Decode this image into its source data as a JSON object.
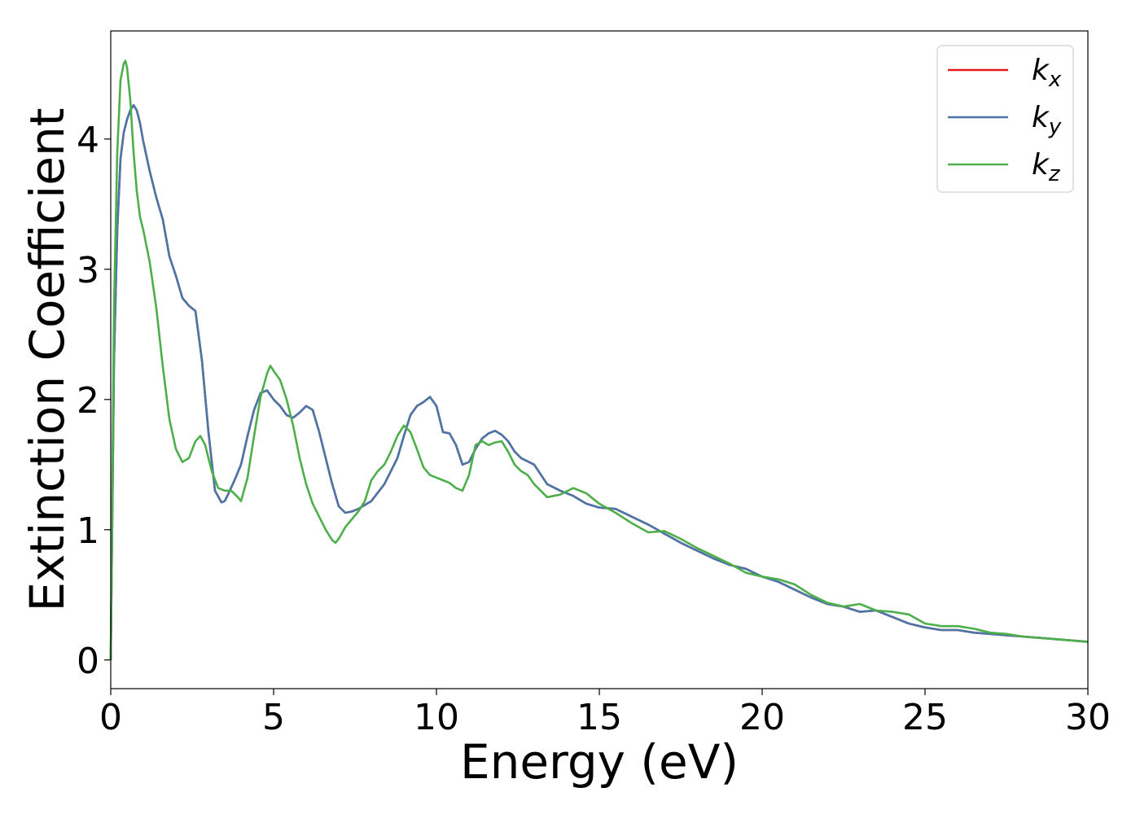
{
  "chart_data": {
    "type": "line",
    "title": "",
    "xlabel": "Energy (eV)",
    "ylabel": "Extinction Coefficient",
    "xlim": [
      0,
      30
    ],
    "ylim": [
      -0.22,
      4.83
    ],
    "xticks": [
      0,
      5,
      10,
      15,
      20,
      25,
      30
    ],
    "yticks": [
      0,
      1,
      2,
      3,
      4
    ],
    "grid": false,
    "legend_position": "top-right",
    "series": [
      {
        "name": "k",
        "subscript": "x",
        "color": "#e41a1c",
        "x": [
          0,
          0.1,
          0.2,
          0.3,
          0.4,
          0.5,
          0.6,
          0.7,
          0.8,
          0.9,
          1.0,
          1.2,
          1.4,
          1.6,
          1.8,
          2.0,
          2.2,
          2.4,
          2.6,
          2.8,
          3.0,
          3.2,
          3.4,
          3.5,
          3.6,
          3.8,
          4.0,
          4.2,
          4.4,
          4.6,
          4.8,
          5.0,
          5.2,
          5.4,
          5.6,
          5.8,
          6.0,
          6.2,
          6.4,
          6.6,
          6.8,
          7.0,
          7.2,
          7.4,
          7.6,
          7.8,
          8.0,
          8.4,
          8.8,
          9.0,
          9.2,
          9.4,
          9.6,
          9.8,
          10.0,
          10.2,
          10.4,
          10.6,
          10.8,
          11.0,
          11.2,
          11.4,
          11.6,
          11.8,
          12.0,
          12.2,
          12.4,
          12.6,
          13.0,
          13.4,
          13.8,
          14.2,
          14.6,
          15.0,
          15.5,
          16.0,
          16.5,
          17.0,
          17.5,
          18.0,
          18.5,
          19.0,
          19.5,
          20.0,
          20.5,
          21.0,
          21.5,
          22.0,
          22.5,
          23.0,
          23.5,
          24.0,
          24.5,
          25.0,
          25.5,
          26.0,
          26.5,
          27.0,
          27.5,
          28.0,
          28.5,
          29.0,
          29.5,
          30.0
        ],
        "y": [
          0.0,
          2.3,
          3.3,
          3.85,
          4.05,
          4.15,
          4.22,
          4.26,
          4.22,
          4.12,
          3.98,
          3.75,
          3.55,
          3.38,
          3.1,
          2.95,
          2.78,
          2.72,
          2.68,
          2.3,
          1.75,
          1.3,
          1.21,
          1.22,
          1.27,
          1.38,
          1.5,
          1.72,
          1.92,
          2.05,
          2.07,
          2.0,
          1.95,
          1.88,
          1.86,
          1.9,
          1.95,
          1.92,
          1.75,
          1.55,
          1.35,
          1.18,
          1.13,
          1.14,
          1.16,
          1.19,
          1.22,
          1.35,
          1.55,
          1.72,
          1.88,
          1.95,
          1.98,
          2.02,
          1.95,
          1.75,
          1.74,
          1.65,
          1.5,
          1.52,
          1.62,
          1.7,
          1.74,
          1.76,
          1.73,
          1.68,
          1.6,
          1.55,
          1.5,
          1.35,
          1.3,
          1.26,
          1.2,
          1.17,
          1.16,
          1.1,
          1.04,
          0.97,
          0.9,
          0.84,
          0.78,
          0.73,
          0.7,
          0.64,
          0.6,
          0.54,
          0.48,
          0.43,
          0.41,
          0.37,
          0.38,
          0.33,
          0.28,
          0.25,
          0.23,
          0.23,
          0.21,
          0.2,
          0.19,
          0.18,
          0.17,
          0.16,
          0.15,
          0.14
        ]
      },
      {
        "name": "k",
        "subscript": "y",
        "color": "#4a77a8",
        "x": [
          0,
          0.1,
          0.2,
          0.3,
          0.4,
          0.5,
          0.6,
          0.7,
          0.8,
          0.9,
          1.0,
          1.2,
          1.4,
          1.6,
          1.8,
          2.0,
          2.2,
          2.4,
          2.6,
          2.8,
          3.0,
          3.2,
          3.4,
          3.5,
          3.6,
          3.8,
          4.0,
          4.2,
          4.4,
          4.6,
          4.8,
          5.0,
          5.2,
          5.4,
          5.6,
          5.8,
          6.0,
          6.2,
          6.4,
          6.6,
          6.8,
          7.0,
          7.2,
          7.4,
          7.6,
          7.8,
          8.0,
          8.4,
          8.8,
          9.0,
          9.2,
          9.4,
          9.6,
          9.8,
          10.0,
          10.2,
          10.4,
          10.6,
          10.8,
          11.0,
          11.2,
          11.4,
          11.6,
          11.8,
          12.0,
          12.2,
          12.4,
          12.6,
          13.0,
          13.4,
          13.8,
          14.2,
          14.6,
          15.0,
          15.5,
          16.0,
          16.5,
          17.0,
          17.5,
          18.0,
          18.5,
          19.0,
          19.5,
          20.0,
          20.5,
          21.0,
          21.5,
          22.0,
          22.5,
          23.0,
          23.5,
          24.0,
          24.5,
          25.0,
          25.5,
          26.0,
          26.5,
          27.0,
          27.5,
          28.0,
          28.5,
          29.0,
          29.5,
          30.0
        ],
        "y": [
          0.0,
          2.3,
          3.3,
          3.85,
          4.05,
          4.15,
          4.22,
          4.26,
          4.22,
          4.12,
          3.98,
          3.75,
          3.55,
          3.38,
          3.1,
          2.95,
          2.78,
          2.72,
          2.68,
          2.3,
          1.75,
          1.3,
          1.21,
          1.22,
          1.27,
          1.38,
          1.5,
          1.72,
          1.92,
          2.05,
          2.07,
          2.0,
          1.95,
          1.88,
          1.86,
          1.9,
          1.95,
          1.92,
          1.75,
          1.55,
          1.35,
          1.18,
          1.13,
          1.14,
          1.16,
          1.19,
          1.22,
          1.35,
          1.55,
          1.72,
          1.88,
          1.95,
          1.98,
          2.02,
          1.95,
          1.75,
          1.74,
          1.65,
          1.5,
          1.52,
          1.62,
          1.7,
          1.74,
          1.76,
          1.73,
          1.68,
          1.6,
          1.55,
          1.5,
          1.35,
          1.3,
          1.26,
          1.2,
          1.17,
          1.16,
          1.1,
          1.04,
          0.97,
          0.9,
          0.84,
          0.78,
          0.73,
          0.7,
          0.64,
          0.6,
          0.54,
          0.48,
          0.43,
          0.41,
          0.37,
          0.38,
          0.33,
          0.28,
          0.25,
          0.23,
          0.23,
          0.21,
          0.2,
          0.19,
          0.18,
          0.17,
          0.16,
          0.15,
          0.14
        ]
      },
      {
        "name": "k",
        "subscript": "z",
        "color": "#4daf4a",
        "x": [
          0,
          0.1,
          0.2,
          0.3,
          0.4,
          0.45,
          0.5,
          0.6,
          0.7,
          0.8,
          0.9,
          1.0,
          1.2,
          1.4,
          1.6,
          1.8,
          2.0,
          2.2,
          2.4,
          2.6,
          2.75,
          2.9,
          3.1,
          3.3,
          3.5,
          3.7,
          3.9,
          4.0,
          4.2,
          4.4,
          4.6,
          4.8,
          4.9,
          5.0,
          5.2,
          5.4,
          5.6,
          5.8,
          6.0,
          6.2,
          6.4,
          6.6,
          6.8,
          6.9,
          7.0,
          7.2,
          7.4,
          7.6,
          7.8,
          8.0,
          8.2,
          8.4,
          8.6,
          8.8,
          9.0,
          9.2,
          9.4,
          9.6,
          9.8,
          10.0,
          10.2,
          10.4,
          10.6,
          10.8,
          11.0,
          11.2,
          11.4,
          11.6,
          11.8,
          12.0,
          12.2,
          12.4,
          12.6,
          12.8,
          13.0,
          13.4,
          13.8,
          14.2,
          14.6,
          15.0,
          15.5,
          16.0,
          16.5,
          17.0,
          17.5,
          18.0,
          18.5,
          19.0,
          19.5,
          20.0,
          20.5,
          21.0,
          21.5,
          22.0,
          22.5,
          23.0,
          23.5,
          24.0,
          24.5,
          25.0,
          25.5,
          26.0,
          26.5,
          27.0,
          27.5,
          28.0,
          28.5,
          29.0,
          29.5,
          30.0
        ],
        "y": [
          0.0,
          2.7,
          3.9,
          4.45,
          4.58,
          4.6,
          4.55,
          4.3,
          3.9,
          3.6,
          3.4,
          3.3,
          3.05,
          2.7,
          2.25,
          1.85,
          1.62,
          1.52,
          1.55,
          1.68,
          1.72,
          1.65,
          1.45,
          1.32,
          1.3,
          1.3,
          1.25,
          1.22,
          1.4,
          1.72,
          2.02,
          2.2,
          2.26,
          2.22,
          2.15,
          2.0,
          1.8,
          1.55,
          1.35,
          1.2,
          1.1,
          1.0,
          0.92,
          0.9,
          0.93,
          1.02,
          1.08,
          1.14,
          1.22,
          1.38,
          1.45,
          1.5,
          1.6,
          1.72,
          1.8,
          1.75,
          1.62,
          1.48,
          1.42,
          1.4,
          1.38,
          1.36,
          1.32,
          1.3,
          1.42,
          1.65,
          1.68,
          1.65,
          1.67,
          1.68,
          1.6,
          1.5,
          1.45,
          1.42,
          1.35,
          1.25,
          1.27,
          1.32,
          1.28,
          1.2,
          1.13,
          1.05,
          0.98,
          0.99,
          0.93,
          0.86,
          0.8,
          0.74,
          0.67,
          0.64,
          0.62,
          0.58,
          0.5,
          0.44,
          0.41,
          0.43,
          0.38,
          0.37,
          0.35,
          0.28,
          0.26,
          0.26,
          0.24,
          0.21,
          0.2,
          0.18,
          0.17,
          0.16,
          0.15,
          0.14
        ]
      }
    ]
  }
}
